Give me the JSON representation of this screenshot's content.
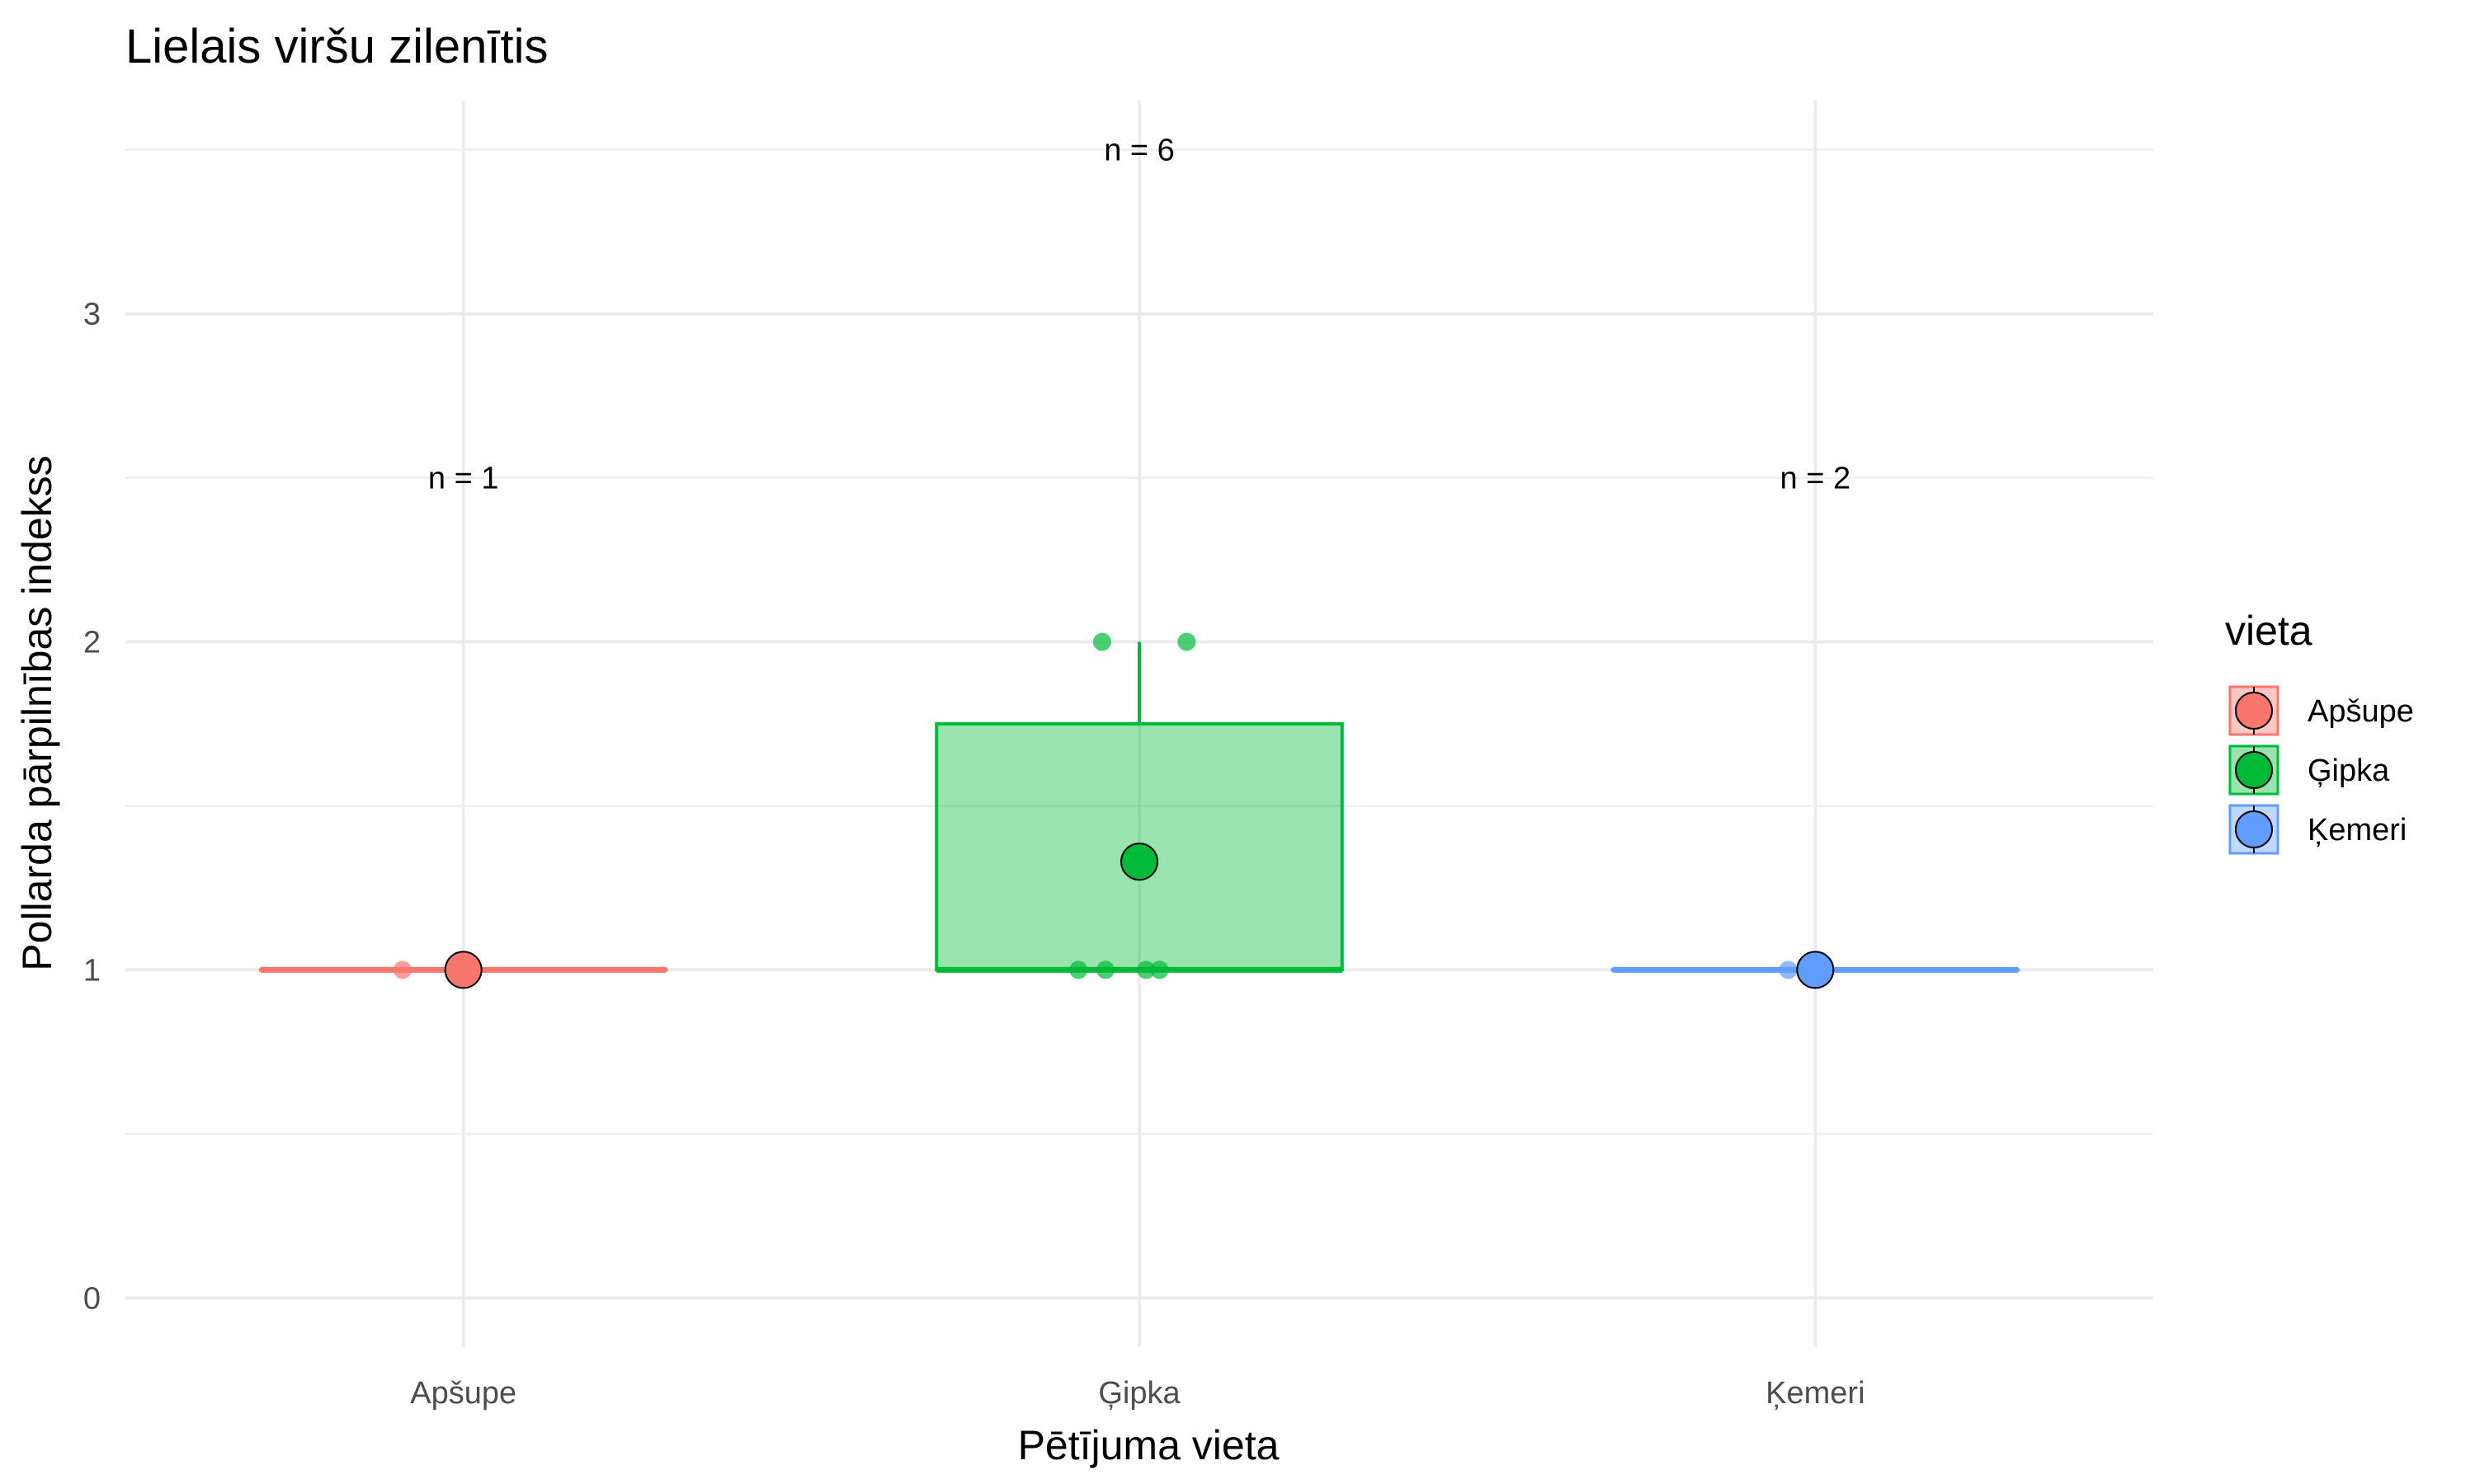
{
  "chart_data": {
    "type": "box",
    "title": "Lielais viršu zilenītis",
    "xlabel": "Pētījuma vieta",
    "ylabel": "Pollarda pārpilnības indekss",
    "categories": [
      "Apšupe",
      "Ģipka",
      "Ķemeri"
    ],
    "colors": [
      "#F8766D",
      "#00BA38",
      "#619CFF"
    ],
    "ylim": [
      -0.15,
      3.65
    ],
    "yticks": [
      0,
      1,
      2,
      3
    ],
    "ytick_labels": [
      "0",
      "1",
      "2",
      "3"
    ],
    "grid": true,
    "legend_position": "right",
    "legend_title": "vieta",
    "boxes": [
      {
        "category": "Apšupe",
        "min": 1,
        "q1": 1,
        "median": 1,
        "q3": 1,
        "max": 1
      },
      {
        "category": "Ģipka",
        "min": 1,
        "q1": 1,
        "median": 1,
        "q3": 1.75,
        "max": 2
      },
      {
        "category": "Ķemeri",
        "min": 1,
        "q1": 1,
        "median": 1,
        "q3": 1,
        "max": 1
      }
    ],
    "means": [
      {
        "category": "Apšupe",
        "value": 1
      },
      {
        "category": "Ģipka",
        "value": 1.33
      },
      {
        "category": "Ķemeri",
        "value": 1
      }
    ],
    "points": [
      {
        "category": "Apšupe",
        "jitter": -0.09,
        "value": 1
      },
      {
        "category": "Ģipka",
        "jitter": -0.09,
        "value": 1
      },
      {
        "category": "Ģipka",
        "jitter": -0.05,
        "value": 1
      },
      {
        "category": "Ģipka",
        "jitter": 0.01,
        "value": 1
      },
      {
        "category": "Ģipka",
        "jitter": 0.03,
        "value": 1
      },
      {
        "category": "Ģipka",
        "jitter": -0.055,
        "value": 2
      },
      {
        "category": "Ģipka",
        "jitter": 0.07,
        "value": 2
      },
      {
        "category": "Ķemeri",
        "jitter": -0.04,
        "value": 1
      },
      {
        "category": "Ķemeri",
        "jitter": 0.0,
        "value": 1
      }
    ],
    "annotations": [
      {
        "category": "Apšupe",
        "text": "n = 1",
        "y": 2.5
      },
      {
        "category": "Ģipka",
        "text": "n = 6",
        "y": 3.5
      },
      {
        "category": "Ķemeri",
        "text": "n = 2",
        "y": 2.5
      }
    ]
  }
}
